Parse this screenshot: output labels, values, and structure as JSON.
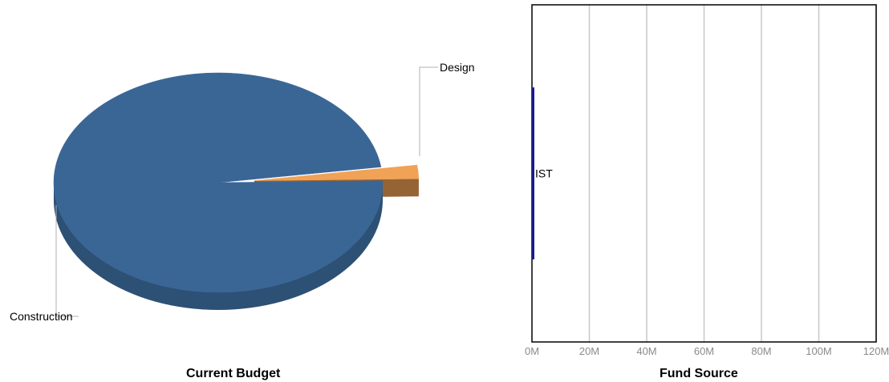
{
  "chart_data": [
    {
      "type": "pie",
      "title": "Current Budget",
      "style": "3d",
      "slices": [
        {
          "label": "Construction",
          "value": 98,
          "color": "#3a6696"
        },
        {
          "label": "Design",
          "value": 2,
          "color": "#f0a256"
        }
      ]
    },
    {
      "type": "bar",
      "orientation": "horizontal",
      "title": "Fund Source",
      "categories": [
        "IST"
      ],
      "values": [
        600000
      ],
      "bar_color": "#1a1a8c",
      "xlim": [
        0,
        120000000
      ],
      "ticks": [
        "0M",
        "20M",
        "40M",
        "60M",
        "80M",
        "100M",
        "120M"
      ],
      "tick_values": [
        0,
        20000000,
        40000000,
        60000000,
        80000000,
        100000000,
        120000000
      ],
      "grid": true
    }
  ]
}
